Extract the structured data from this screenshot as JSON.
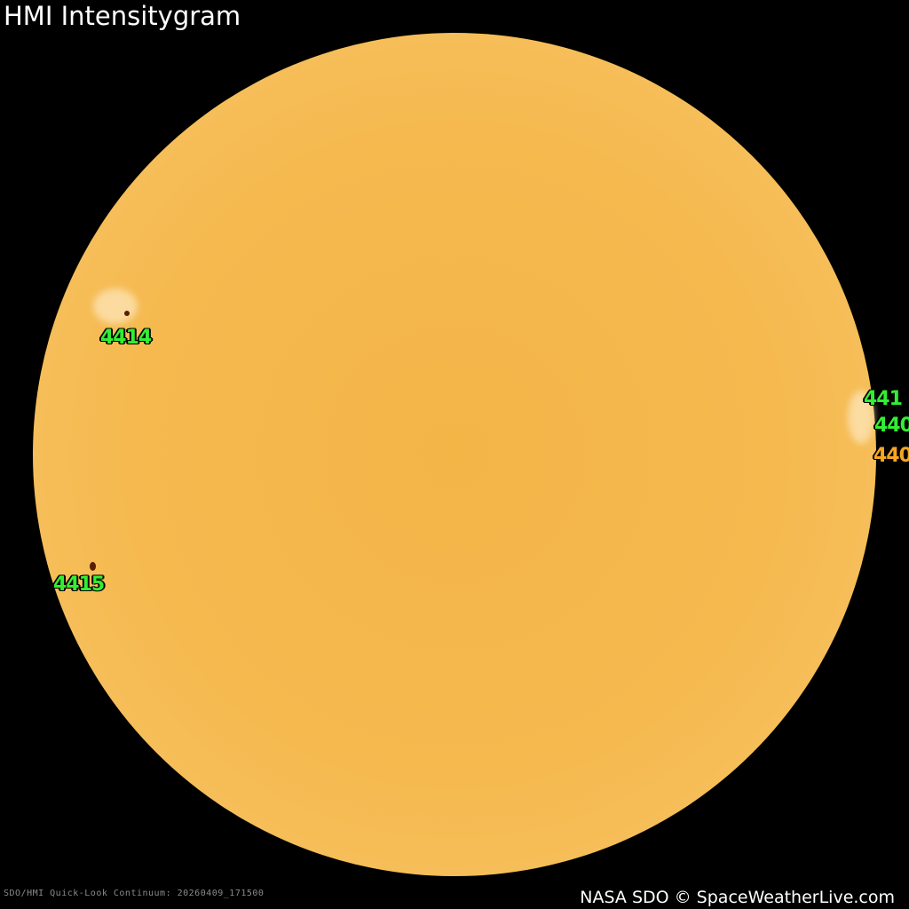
{
  "title": "HMI Intensitygram",
  "credit": "NASA SDO © SpaceWeatherLive.com",
  "meta": "SDO/HMI Quick-Look Continuum: 20260409_171500",
  "colors": {
    "sun": "#f5b94f",
    "background": "#000000",
    "region_new": "#33ee33",
    "region_old": "#f5a623"
  },
  "regions": [
    {
      "label": "4414",
      "color": "#33ee33"
    },
    {
      "label": "4415",
      "color": "#33ee33"
    },
    {
      "label": "441",
      "color": "#33ee33"
    },
    {
      "label": "440",
      "color": "#33ee33"
    },
    {
      "label": "440",
      "color": "#f5a623"
    }
  ]
}
